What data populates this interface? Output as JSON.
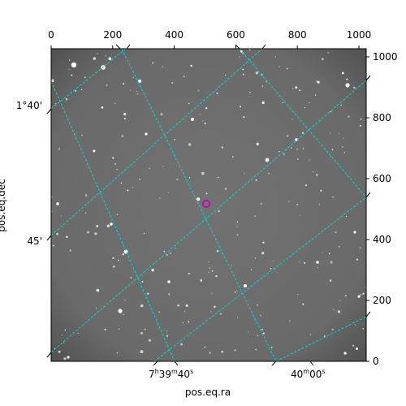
{
  "axes": {
    "x_label": "pos.eq.ra",
    "y_label": "pos.eq.dec",
    "top_ticks": [
      "0",
      "200",
      "400",
      "600",
      "800",
      "1000"
    ],
    "right_ticks": [
      "0",
      "200",
      "400",
      "600",
      "800",
      "1000"
    ],
    "left_ticks": [
      "1°40'",
      "45'"
    ],
    "bottom_ticks": [
      {
        "h": "7",
        "hs": "h",
        "m": "39",
        "ms": "m",
        "s": "40",
        "ss": "s"
      },
      {
        "h": "",
        "hs": "",
        "m": "40",
        "ms": "m",
        "s": "00",
        "ss": "s"
      }
    ]
  },
  "colors": {
    "grid": "#00d8d8",
    "marker": "#c000c0",
    "background": "#6e6e6e"
  }
}
